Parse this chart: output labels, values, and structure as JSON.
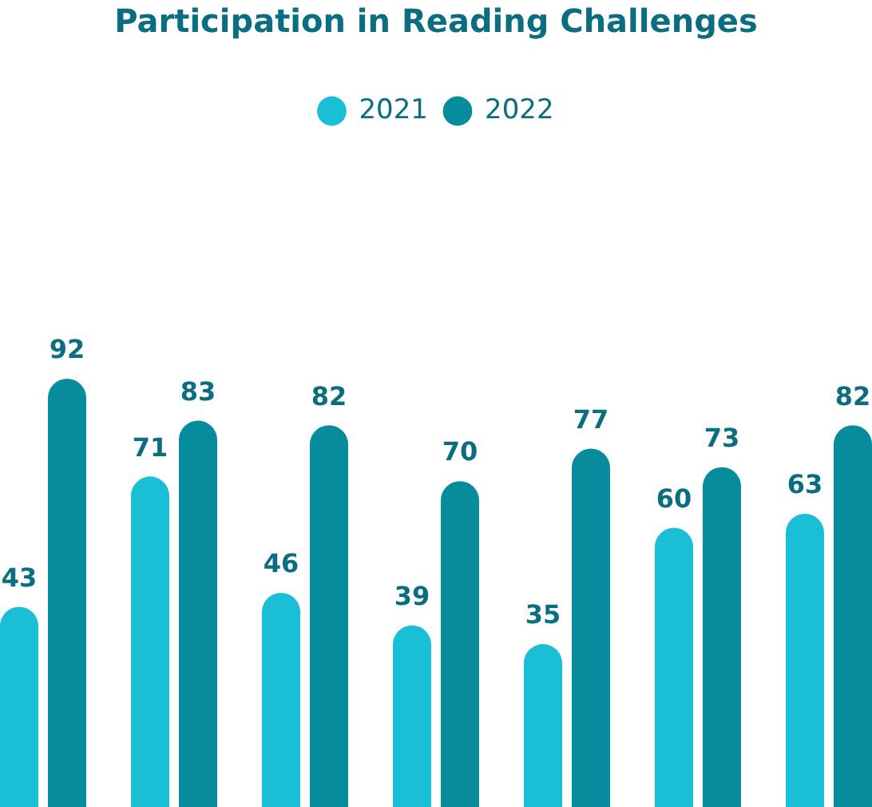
{
  "chart_data": {
    "type": "bar",
    "title": "Participation in Reading Challenges",
    "categories": [
      null,
      null,
      null,
      null,
      null,
      null,
      null
    ],
    "series": [
      {
        "name": "2021",
        "color": "#1abed5",
        "values": [
          43,
          71,
          46,
          39,
          35,
          60,
          63
        ]
      },
      {
        "name": "2022",
        "color": "#078c9e",
        "values": [
          92,
          83,
          82,
          70,
          77,
          73,
          82
        ]
      }
    ],
    "data_labels": true,
    "legend": "top",
    "grid": false,
    "tick_labels": false
  }
}
